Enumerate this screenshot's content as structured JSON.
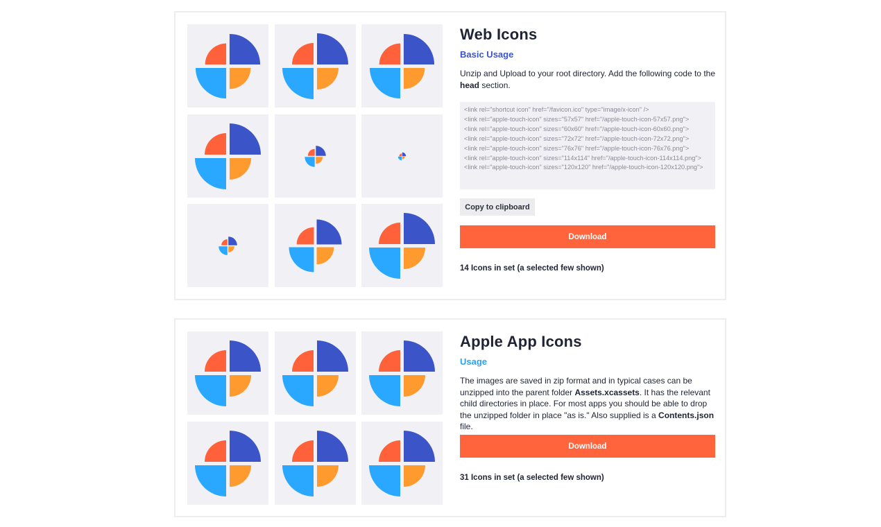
{
  "colors": {
    "accent": "#ff643c",
    "blue_dark": "#3b55c8",
    "blue_light": "#2aa8ff",
    "orange": "#ff9a2e",
    "orange_red": "#ff623b",
    "tile_bg": "#f1f1f5"
  },
  "web_icons": {
    "title": "Web Icons",
    "subtitle": "Basic Usage",
    "description_pre": "Unzip and Upload to your root directory. Add the following code to the ",
    "description_bold": "head",
    "description_post": " section.",
    "code_lines": [
      "<link rel=\"shortcut icon\" href=\"/favicon.ico\" type=\"image/x-icon\" />",
      "<link rel=\"apple-touch-icon\" sizes=\"57x57\" href=\"/apple-touch-icon-57x57.png\">",
      "<link rel=\"apple-touch-icon\" sizes=\"60x60\" href=\"/apple-touch-icon-60x60.png\">",
      "<link rel=\"apple-touch-icon\" sizes=\"72x72\" href=\"/apple-touch-icon-72x72.png\">",
      "<link rel=\"apple-touch-icon\" sizes=\"76x76\" href=\"/apple-touch-icon-76x76.png\">",
      "<link rel=\"apple-touch-icon\" sizes=\"114x114\" href=\"/apple-touch-icon-114x114.png\">",
      "<link rel=\"apple-touch-icon\" sizes=\"120x120\" href=\"/apple-touch-icon-120x120.png\">"
    ],
    "copy_label": "Copy to clipboard",
    "download_label": "Download",
    "count_label": "14 Icons in set (a selected few shown)",
    "icon_scale": [
      0.98,
      1.0,
      0.98,
      1.0,
      0.32,
      0.12,
      0.28,
      0.8,
      1.0
    ]
  },
  "apple_icons": {
    "title": "Apple App Icons",
    "subtitle": "Usage",
    "desc_1": "The images are saved in zip format and in typical cases can be unzipped into the parent folder ",
    "desc_bold_1": "Assets.xcassets",
    "desc_2": ". It has the relevant child directories in place. For most apps you should be able to drop the unzipped folder in place \"as is.\" Also supplied is a ",
    "desc_bold_2": "Contents.json",
    "desc_3": " file.",
    "download_label": "Download",
    "count_label": "31 Icons in set (a selected few shown)",
    "icon_scale": [
      1.0,
      1.0,
      1.0,
      1.0,
      1.0,
      1.0
    ]
  }
}
